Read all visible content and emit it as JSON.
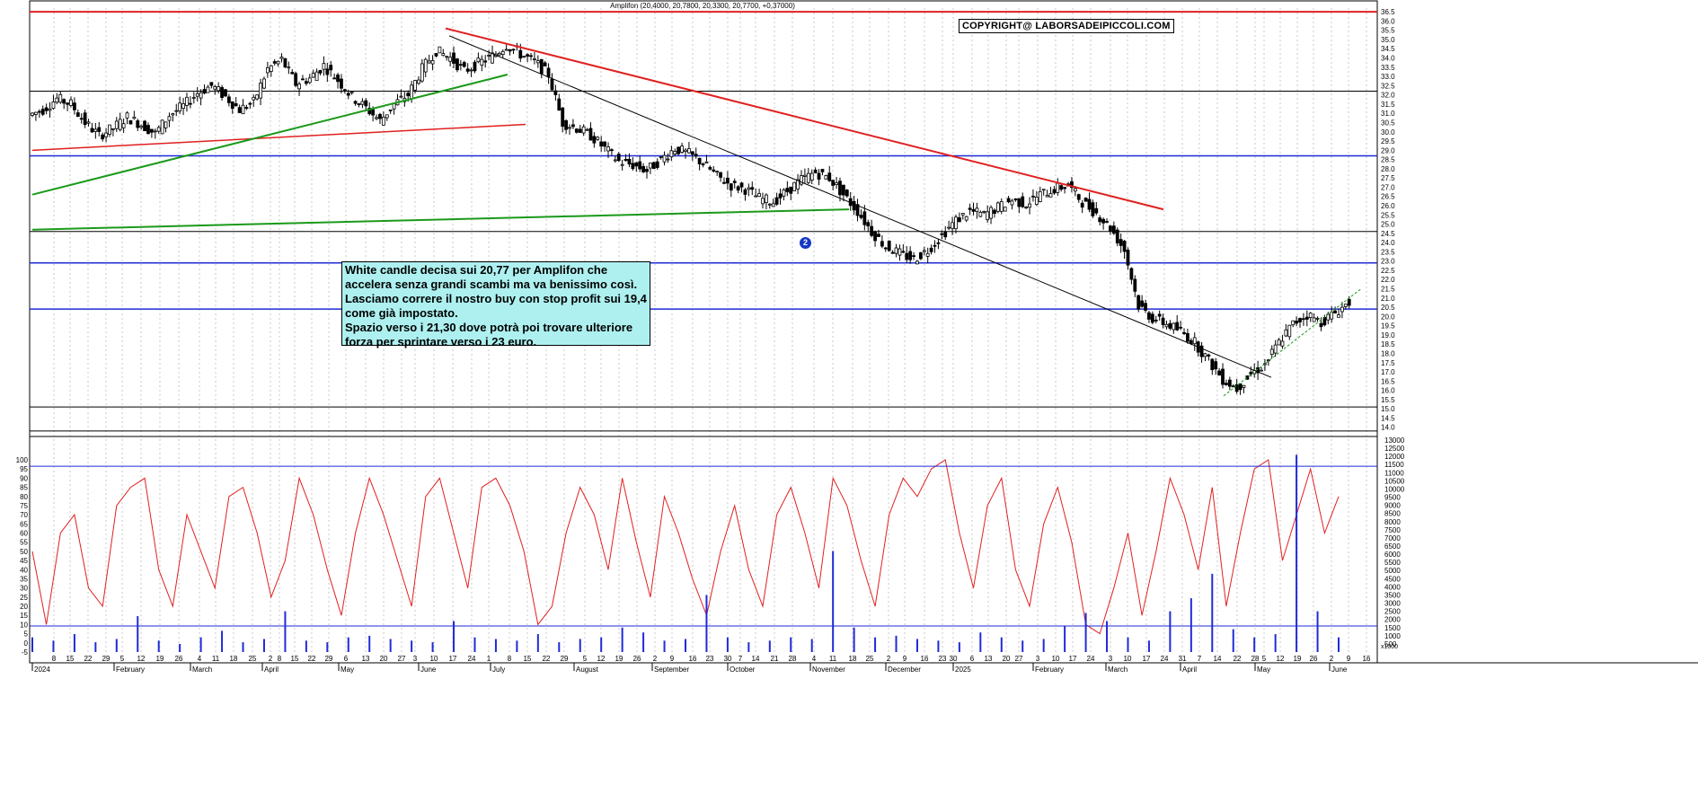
{
  "header": {
    "title": "Amplifon (20,4000, 20,7800, 20,3300, 20,7700, +0,37000)"
  },
  "copyright": "COPYRIGHT@ LABORSADEIPICCOLI.COM",
  "annotation": {
    "text": "White candle decisa sui 20,77 per Amplifon che accelera senza grandi scambi ma va benissimo così.\nLasciamo correre il nostro buy con stop profit sui 19,4 come già impostato.\nSpazio verso i 21,30 dove potrà poi trovare ulteriore forza per sprintare verso i 23 euro."
  },
  "marker": {
    "label": "2"
  },
  "colors": {
    "background": "#ffffff",
    "price": "#000000",
    "oscillator": "#e02020",
    "volume": "#1f2bd6",
    "support": "#1f2bd6",
    "resistance": "#e02020",
    "trend_green": "#1a9a1a",
    "grid": "#c8c8c8"
  },
  "chart_data": [
    {
      "type": "candlestick",
      "title": "Amplifon (20,4000, 20,7800, 20,3300, 20,7700, +0,37000)",
      "last": {
        "open": 20.4,
        "high": 20.78,
        "low": 20.33,
        "close": 20.77,
        "change": 0.37
      },
      "ylim": [
        13.5,
        36.7
      ],
      "y_ticks": [
        "36.5",
        "36.0",
        "35.5",
        "35.0",
        "34.5",
        "34.0",
        "33.5",
        "33.0",
        "32.5",
        "32.0",
        "31.5",
        "31.0",
        "30.5",
        "30.0",
        "29.5",
        "29.0",
        "28.5",
        "28.0",
        "27.5",
        "27.0",
        "26.5",
        "26.0",
        "25.5",
        "25.0",
        "24.5",
        "24.0",
        "23.5",
        "23.0",
        "22.5",
        "22.0",
        "21.5",
        "21.0",
        "20.5",
        "20.0",
        "19.5",
        "19.0",
        "18.5",
        "18.0",
        "17.5",
        "17.0",
        "16.5",
        "16.0",
        "15.5",
        "15.0",
        "14.5",
        "14.0"
      ],
      "close_series": [
        31.2,
        31.8,
        31.5,
        30.5,
        29.8,
        30.2,
        30.8,
        30.4,
        29.9,
        30.9,
        31.4,
        32.1,
        32.5,
        31.9,
        31.2,
        31.6,
        33.4,
        33.9,
        32.6,
        32.9,
        33.6,
        32.8,
        31.9,
        31.3,
        30.6,
        31.5,
        32.0,
        33.4,
        34.4,
        34.0,
        33.3,
        33.7,
        34.1,
        34.7,
        34.2,
        33.8,
        33.1,
        30.5,
        30.2,
        29.8,
        29.1,
        28.4,
        28.2,
        27.9,
        28.5,
        29.1,
        28.8,
        28.3,
        27.6,
        27.1,
        26.9,
        26.4,
        26.2,
        26.8,
        27.4,
        27.8,
        27.5,
        26.6,
        25.7,
        24.6,
        23.8,
        23.4,
        23.1,
        23.6,
        24.4,
        25.2,
        25.7,
        25.5,
        25.9,
        26.3,
        26.1,
        26.6,
        26.9,
        27.1,
        26.2,
        25.6,
        24.8,
        23.6,
        20.6,
        19.9,
        19.6,
        19.2,
        18.6,
        17.6,
        16.6,
        16.1,
        16.9,
        17.4,
        18.6,
        19.6,
        20.1,
        19.7,
        20.2,
        20.77
      ],
      "levels": {
        "resistance_red": 36.5,
        "support_blue": [
          28.7,
          22.9,
          20.4
        ],
        "black_horizontal": [
          32.2,
          24.6,
          15.1,
          13.8
        ]
      }
    },
    {
      "type": "line",
      "series": [
        {
          "values": [
            50,
            10,
            60,
            70,
            30,
            20,
            75,
            85,
            90,
            40,
            20,
            70,
            50,
            30,
            80,
            85,
            60,
            25,
            45,
            90,
            70,
            40,
            15,
            60,
            90,
            70,
            45,
            20,
            80,
            90,
            60,
            30,
            85,
            90,
            75,
            50,
            10,
            20,
            60,
            85,
            70,
            40,
            90,
            55,
            25,
            80,
            60,
            35,
            15,
            50,
            75,
            40,
            20,
            70,
            85,
            60,
            30,
            90,
            75,
            45,
            20,
            70,
            90,
            80,
            95,
            100,
            60,
            30,
            75,
            90,
            40,
            20,
            65,
            85,
            55,
            10,
            5,
            30,
            60,
            15,
            50,
            90,
            70,
            40,
            85,
            20,
            60,
            95,
            100,
            45,
            70,
            95,
            60,
            80
          ]
        }
      ],
      "ylim": [
        -5,
        100
      ],
      "y_ticks": [
        "100",
        "95",
        "90",
        "85",
        "80",
        "75",
        "70",
        "65",
        "60",
        "55",
        "50",
        "45",
        "40",
        "35",
        "30",
        "25",
        "20",
        "15",
        "10",
        "5",
        "0",
        "-5"
      ],
      "reference_line": 96.5
    },
    {
      "type": "bar",
      "name": "volume",
      "values": [
        900,
        700,
        1100,
        600,
        800,
        2200,
        700,
        500,
        900,
        1300,
        600,
        800,
        2500,
        700,
        600,
        900,
        1000,
        800,
        700,
        600,
        1900,
        900,
        800,
        700,
        1100,
        600,
        800,
        900,
        1500,
        1200,
        700,
        800,
        3500,
        900,
        600,
        700,
        900,
        800,
        6200,
        1500,
        900,
        1000,
        800,
        700,
        600,
        1200,
        900,
        700,
        800,
        1600,
        2400,
        1900,
        900,
        700,
        2500,
        3300,
        4800,
        1400,
        900,
        1100,
        12100,
        2500,
        900
      ],
      "ylim": [
        0,
        13000
      ],
      "y_ticks": [
        "13000",
        "12500",
        "12000",
        "11500",
        "11000",
        "10500",
        "10000",
        "9500",
        "9000",
        "8500",
        "8000",
        "7500",
        "7000",
        "6500",
        "6000",
        "5500",
        "5000",
        "4500",
        "4000",
        "3500",
        "3000",
        "2500",
        "2000",
        "1500",
        "1000",
        "500"
      ],
      "scale_label": "x1000",
      "reference_line": 1600
    }
  ],
  "x_axis": {
    "months": [
      {
        "label": "2024",
        "x": 36
      },
      {
        "label": "February",
        "x": 127
      },
      {
        "label": "March",
        "x": 212
      },
      {
        "label": "April",
        "x": 292
      },
      {
        "label": "May",
        "x": 377
      },
      {
        "label": "June",
        "x": 466
      },
      {
        "label": "July",
        "x": 546
      },
      {
        "label": "August",
        "x": 639
      },
      {
        "label": "September",
        "x": 726
      },
      {
        "label": "October",
        "x": 810
      },
      {
        "label": "November",
        "x": 902
      },
      {
        "label": "December",
        "x": 986
      },
      {
        "label": "2025",
        "x": 1061
      },
      {
        "label": "February",
        "x": 1150
      },
      {
        "label": "March",
        "x": 1231
      },
      {
        "label": "April",
        "x": 1314
      },
      {
        "label": "May",
        "x": 1397
      },
      {
        "label": "June",
        "x": 1480
      }
    ],
    "day_ticks": [
      {
        "label": "8",
        "x": 60
      },
      {
        "label": "15",
        "x": 78
      },
      {
        "label": "22",
        "x": 98
      },
      {
        "label": "29",
        "x": 118
      },
      {
        "label": "5",
        "x": 136
      },
      {
        "label": "12",
        "x": 157
      },
      {
        "label": "19",
        "x": 178
      },
      {
        "label": "26",
        "x": 199
      },
      {
        "label": "4",
        "x": 222
      },
      {
        "label": "11",
        "x": 240
      },
      {
        "label": "18",
        "x": 260
      },
      {
        "label": "25",
        "x": 281
      },
      {
        "label": "2",
        "x": 301
      },
      {
        "label": "8",
        "x": 311
      },
      {
        "label": "15",
        "x": 328
      },
      {
        "label": "22",
        "x": 347
      },
      {
        "label": "29",
        "x": 366
      },
      {
        "label": "6",
        "x": 385
      },
      {
        "label": "13",
        "x": 407
      },
      {
        "label": "20",
        "x": 427
      },
      {
        "label": "27",
        "x": 447
      },
      {
        "label": "3",
        "x": 462
      },
      {
        "label": "10",
        "x": 483
      },
      {
        "label": "17",
        "x": 504
      },
      {
        "label": "24",
        "x": 525
      },
      {
        "label": "1",
        "x": 544
      },
      {
        "label": "8",
        "x": 567
      },
      {
        "label": "15",
        "x": 587
      },
      {
        "label": "22",
        "x": 608
      },
      {
        "label": "29",
        "x": 628
      },
      {
        "label": "5",
        "x": 651
      },
      {
        "label": "12",
        "x": 669
      },
      {
        "label": "19",
        "x": 689
      },
      {
        "label": "26",
        "x": 709
      },
      {
        "label": "2",
        "x": 729
      },
      {
        "label": "9",
        "x": 748
      },
      {
        "label": "16",
        "x": 771
      },
      {
        "label": "23",
        "x": 790
      },
      {
        "label": "30",
        "x": 810
      },
      {
        "label": "7",
        "x": 824
      },
      {
        "label": "14",
        "x": 841
      },
      {
        "label": "21",
        "x": 862
      },
      {
        "label": "28",
        "x": 882
      },
      {
        "label": "4",
        "x": 906
      },
      {
        "label": "11",
        "x": 927
      },
      {
        "label": "18",
        "x": 949
      },
      {
        "label": "25",
        "x": 968
      },
      {
        "label": "2",
        "x": 989
      },
      {
        "label": "9",
        "x": 1007
      },
      {
        "label": "16",
        "x": 1029
      },
      {
        "label": "23",
        "x": 1049
      },
      {
        "label": "30",
        "x": 1061
      },
      {
        "label": "6",
        "x": 1082
      },
      {
        "label": "13",
        "x": 1100
      },
      {
        "label": "20",
        "x": 1120
      },
      {
        "label": "27",
        "x": 1134
      },
      {
        "label": "3",
        "x": 1155
      },
      {
        "label": "10",
        "x": 1175
      },
      {
        "label": "17",
        "x": 1194
      },
      {
        "label": "24",
        "x": 1214
      },
      {
        "label": "3",
        "x": 1236
      },
      {
        "label": "10",
        "x": 1255
      },
      {
        "label": "17",
        "x": 1276
      },
      {
        "label": "24",
        "x": 1296
      },
      {
        "label": "31",
        "x": 1316
      },
      {
        "label": "7",
        "x": 1335
      },
      {
        "label": "14",
        "x": 1355
      },
      {
        "label": "22",
        "x": 1377
      },
      {
        "label": "28",
        "x": 1397
      },
      {
        "label": "5",
        "x": 1407
      },
      {
        "label": "12",
        "x": 1425
      },
      {
        "label": "19",
        "x": 1444
      },
      {
        "label": "26",
        "x": 1462
      },
      {
        "label": "2",
        "x": 1482
      },
      {
        "label": "9",
        "x": 1501
      },
      {
        "label": "16",
        "x": 1521
      }
    ]
  }
}
